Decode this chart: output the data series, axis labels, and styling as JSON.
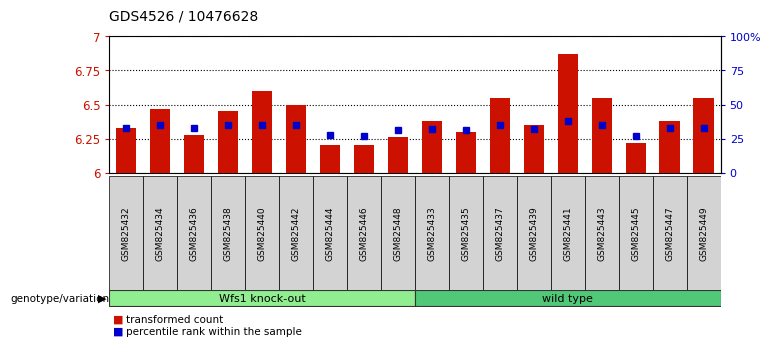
{
  "title": "GDS4526 / 10476628",
  "samples": [
    "GSM825432",
    "GSM825434",
    "GSM825436",
    "GSM825438",
    "GSM825440",
    "GSM825442",
    "GSM825444",
    "GSM825446",
    "GSM825448",
    "GSM825433",
    "GSM825435",
    "GSM825437",
    "GSM825439",
    "GSM825441",
    "GSM825443",
    "GSM825445",
    "GSM825447",
    "GSM825449"
  ],
  "red_values": [
    6.33,
    6.47,
    6.28,
    6.45,
    6.6,
    6.5,
    6.2,
    6.2,
    6.26,
    6.38,
    6.3,
    6.55,
    6.35,
    6.87,
    6.55,
    6.22,
    6.38,
    6.55
  ],
  "blue_values": [
    33,
    35,
    33,
    35,
    35,
    35,
    28,
    27,
    31,
    32,
    31,
    35,
    32,
    38,
    35,
    27,
    33,
    33
  ],
  "groups": [
    {
      "label": "Wfs1 knock-out",
      "start": 0,
      "end": 9,
      "color": "#90EE90"
    },
    {
      "label": "wild type",
      "start": 9,
      "end": 18,
      "color": "#50C878"
    }
  ],
  "ylim_left": [
    6.0,
    7.0
  ],
  "ylim_right": [
    0,
    100
  ],
  "yticks_left": [
    6.0,
    6.25,
    6.5,
    6.75,
    7.0
  ],
  "ytick_labels_left": [
    "6",
    "6.25",
    "6.5",
    "6.75",
    "7"
  ],
  "yticks_right": [
    0,
    25,
    50,
    75,
    100
  ],
  "ytick_labels_right": [
    "0",
    "25",
    "50",
    "75",
    "100%"
  ],
  "bar_color": "#CC1100",
  "dot_color": "#0000CC",
  "bar_width": 0.6,
  "background_color": "#FFFFFF",
  "plot_bg_color": "#FFFFFF",
  "legend_items": [
    "transformed count",
    "percentile rank within the sample"
  ],
  "group_row_label": "genotype/variation"
}
